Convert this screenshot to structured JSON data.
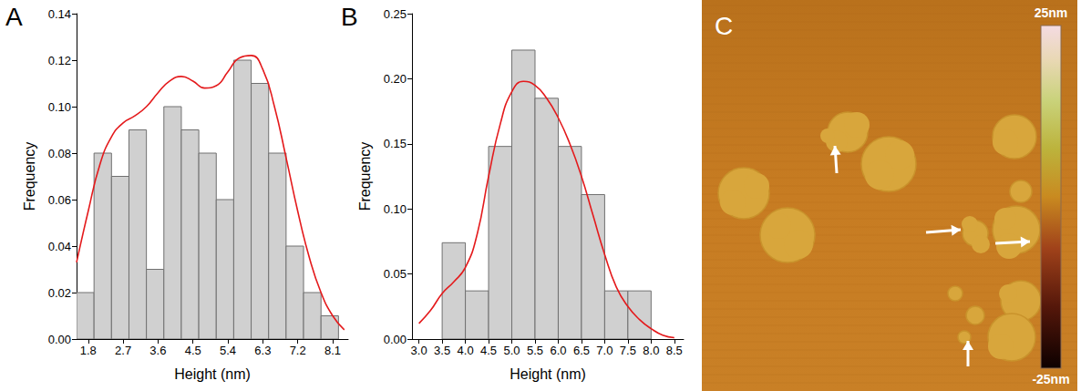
{
  "chart_data": [
    {
      "type": "histogram",
      "panel": "A",
      "x_label": "Height (nm)",
      "y_label": "Frequency",
      "bins": [
        1.5,
        1.95,
        2.4,
        2.85,
        3.3,
        3.75,
        4.2,
        4.65,
        5.1,
        5.55,
        6.0,
        6.45,
        6.9,
        7.35,
        7.8,
        8.25
      ],
      "values": [
        0.02,
        0.08,
        0.07,
        0.09,
        0.03,
        0.1,
        0.09,
        0.08,
        0.06,
        0.12,
        0.11,
        0.08,
        0.04,
        0.02,
        0.01
      ],
      "color": "#d0d0d0",
      "curve": {
        "color": "#e41a1c",
        "x": [
          1.5,
          1.8,
          2.1,
          2.4,
          2.7,
          3.0,
          3.3,
          3.6,
          3.9,
          4.2,
          4.5,
          4.8,
          5.1,
          5.4,
          5.7,
          6.0,
          6.3,
          6.6,
          6.9,
          7.2,
          7.5,
          7.8,
          8.1,
          8.4
        ],
        "values": [
          0.033,
          0.055,
          0.075,
          0.087,
          0.093,
          0.096,
          0.1,
          0.106,
          0.111,
          0.113,
          0.111,
          0.108,
          0.109,
          0.115,
          0.121,
          0.122,
          0.116,
          0.1,
          0.078,
          0.055,
          0.035,
          0.02,
          0.01,
          0.004
        ]
      },
      "xlim": [
        1.5,
        8.5
      ],
      "xticks": [
        1.8,
        2.7,
        3.6,
        4.5,
        5.4,
        6.3,
        7.2,
        8.1
      ],
      "ylim": [
        0,
        0.14
      ],
      "yticks": [
        {
          "value": 0,
          "label": "0.00"
        },
        0.02,
        0.04,
        0.06,
        0.08,
        {
          "value": 0.1,
          "label": "0.10"
        },
        0.12,
        0.14
      ],
      "grid": false
    },
    {
      "type": "histogram",
      "panel": "B",
      "x_label": "Height (nm)",
      "y_label": "Frequency",
      "bins": [
        3.5,
        4.0,
        4.5,
        5.0,
        5.5,
        6.0,
        6.5,
        7.0,
        7.5,
        8.0
      ],
      "values": [
        0.074,
        0.037,
        0.148,
        0.222,
        0.185,
        0.148,
        0.111,
        0.037,
        0.037
      ],
      "color": "#d0d0d0",
      "curve": {
        "color": "#e41a1c",
        "x": [
          3.0,
          3.25,
          3.5,
          3.75,
          4.0,
          4.25,
          4.5,
          4.75,
          5.0,
          5.25,
          5.5,
          5.75,
          6.0,
          6.25,
          6.5,
          6.75,
          7.0,
          7.25,
          7.5,
          7.75,
          8.0,
          8.25,
          8.5
        ],
        "values": [
          0.012,
          0.022,
          0.035,
          0.044,
          0.055,
          0.08,
          0.125,
          0.165,
          0.19,
          0.198,
          0.195,
          0.185,
          0.17,
          0.15,
          0.125,
          0.095,
          0.065,
          0.04,
          0.025,
          0.015,
          0.008,
          0.003,
          0.001
        ]
      },
      "xlim": [
        2.85,
        8.7
      ],
      "xticks": [
        {
          "value": 3,
          "label": "3.0"
        },
        3.5,
        {
          "value": 4,
          "label": "4.0"
        },
        4.5,
        {
          "value": 5,
          "label": "5.0"
        },
        5.5,
        {
          "value": 6,
          "label": "6.0"
        },
        6.5,
        {
          "value": 7,
          "label": "7.0"
        },
        7.5,
        {
          "value": 8,
          "label": "8.0"
        },
        8.5
      ],
      "ylim": [
        0,
        0.25
      ],
      "yticks": [
        {
          "value": 0,
          "label": "0.00"
        },
        0.05,
        {
          "value": 0.1,
          "label": "0.10"
        },
        0.15,
        {
          "value": 0.2,
          "label": "0.20"
        },
        0.25
      ],
      "grid": false
    }
  ],
  "image": {
    "panel": "C",
    "colorbar": {
      "range": [
        -25,
        25
      ],
      "ticks": [
        {
          "value": 25,
          "label": "25nm"
        },
        {
          "value": -25,
          "label": "-25nm"
        }
      ]
    }
  }
}
